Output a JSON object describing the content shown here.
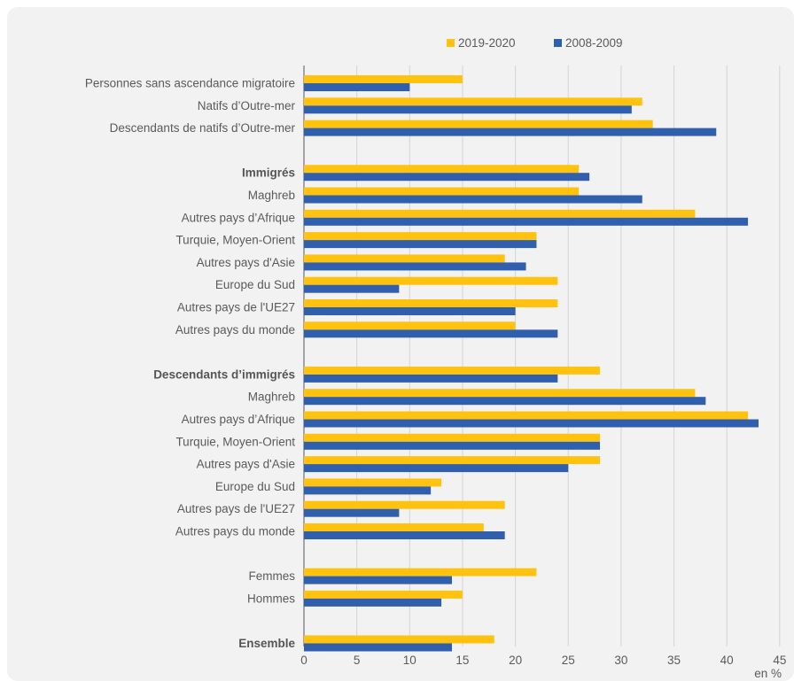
{
  "chart_data": {
    "type": "bar",
    "orientation": "horizontal",
    "categories": [
      "Personnes sans ascendance migratoire",
      "Natifs d’Outre-mer",
      "Descendants de natifs d’Outre-mer",
      "",
      "Immigrés",
      "Maghreb",
      "Autres pays d’Afrique",
      "Turquie, Moyen-Orient",
      "Autres pays d'Asie",
      "Europe du Sud",
      "Autres pays de l'UE27",
      "Autres pays du monde",
      "",
      "Descendants d’immigrés",
      "Maghreb",
      "Autres pays d’Afrique",
      "Turquie, Moyen-Orient",
      "Autres pays d'Asie",
      "Europe du Sud",
      "Autres pays de l'UE27",
      "Autres pays du monde",
      "",
      "Femmes",
      "Hommes",
      "",
      "Ensemble"
    ],
    "bold_categories": [
      "Immigrés",
      "Descendants d’immigrés",
      "Ensemble"
    ],
    "series": [
      {
        "name": "2019-2020",
        "color": "#ffc20e",
        "values": [
          15,
          32,
          33,
          null,
          26,
          26,
          37,
          22,
          19,
          24,
          24,
          20,
          null,
          28,
          37,
          42,
          28,
          28,
          13,
          19,
          17,
          null,
          22,
          15,
          null,
          18
        ]
      },
      {
        "name": "2008-2009",
        "color": "#2f5fad",
        "values": [
          10,
          31,
          39,
          null,
          27,
          32,
          42,
          22,
          21,
          9,
          20,
          24,
          null,
          24,
          38,
          43,
          28,
          25,
          12,
          9,
          19,
          null,
          14,
          13,
          null,
          14
        ]
      }
    ],
    "xlim": [
      0,
      45
    ],
    "xticks": [
      "0",
      "5",
      "10",
      "15",
      "20",
      "25",
      "30",
      "35",
      "40",
      "45"
    ],
    "unit_label": "en %",
    "legend_position": "top-center",
    "grid": "vertical"
  }
}
